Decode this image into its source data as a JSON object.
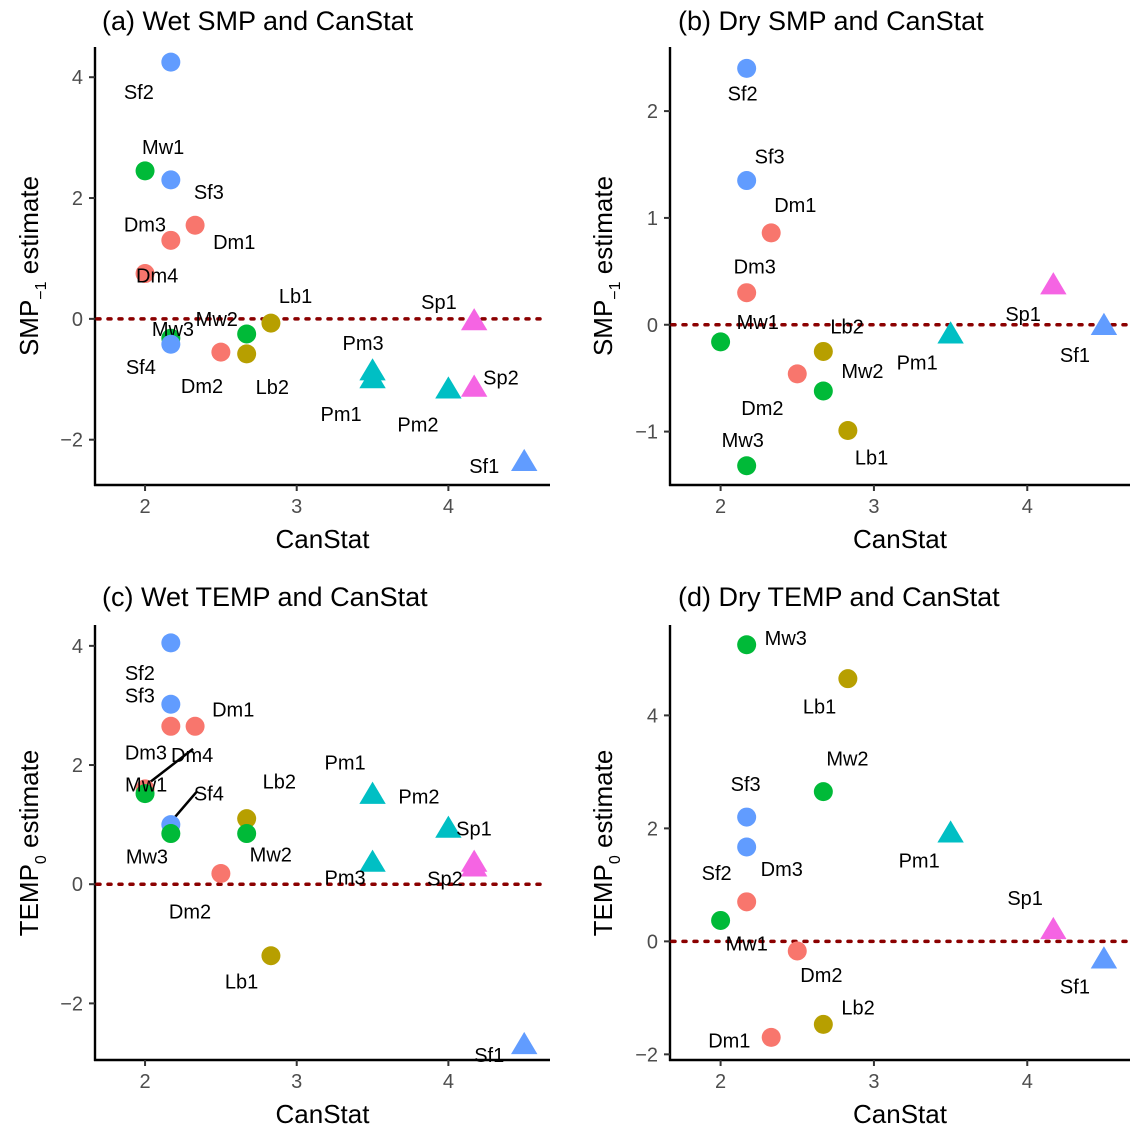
{
  "colors": {
    "Dm": "#f8766d",
    "Lb": "#b79f00",
    "Mw": "#00ba38",
    "Pm": "#00bfc4",
    "Sf": "#619cff",
    "Sp": "#f564e3",
    "ref_line": "#8b0000"
  },
  "chart_data": [
    {
      "type": "scatter",
      "title": "(a) Wet SMP and CanStat",
      "xlabel": "CanStat",
      "ylabel_main": "SMP",
      "ylabel_sub": "−1",
      "ylabel_rest": " estimate",
      "xlim": [
        1.67,
        4.67
      ],
      "ylim": [
        -2.75,
        4.5
      ],
      "xticks": [
        2,
        3,
        4
      ],
      "yticks": [
        -2,
        0,
        2,
        4
      ],
      "ytick_labels": [
        "−2",
        "0",
        "2",
        "4"
      ],
      "ref_y": 0,
      "points": [
        {
          "label": "Sf2",
          "group": "Sf",
          "shape": "circle",
          "x": 2.17,
          "y": 4.25
        },
        {
          "label": "Mw1",
          "group": "Mw",
          "shape": "circle",
          "x": 2.0,
          "y": 2.45
        },
        {
          "label": "Sf3",
          "group": "Sf",
          "shape": "circle",
          "x": 2.17,
          "y": 2.3
        },
        {
          "label": "Dm3",
          "group": "Dm",
          "shape": "circle",
          "x": 2.17,
          "y": 1.3
        },
        {
          "label": "Dm1",
          "group": "Dm",
          "shape": "circle",
          "x": 2.33,
          "y": 1.55
        },
        {
          "label": "Dm4",
          "group": "Dm",
          "shape": "circle",
          "x": 2.0,
          "y": 0.75
        },
        {
          "label": "Mw3",
          "group": "Mw",
          "shape": "circle",
          "x": 2.17,
          "y": -0.32
        },
        {
          "label": "Sf4",
          "group": "Sf",
          "shape": "circle",
          "x": 2.17,
          "y": -0.42
        },
        {
          "label": "Mw2",
          "group": "Mw",
          "shape": "circle",
          "x": 2.67,
          "y": -0.25
        },
        {
          "label": "Dm2",
          "group": "Dm",
          "shape": "circle",
          "x": 2.5,
          "y": -0.55
        },
        {
          "label": "Lb1",
          "group": "Lb",
          "shape": "circle",
          "x": 2.83,
          "y": -0.07
        },
        {
          "label": "Lb2",
          "group": "Lb",
          "shape": "circle",
          "x": 2.67,
          "y": -0.58
        },
        {
          "label": "Pm3",
          "group": "Pm",
          "shape": "triangle",
          "x": 3.5,
          "y": -0.85
        },
        {
          "label": "Pm1",
          "group": "Pm",
          "shape": "triangle",
          "x": 3.5,
          "y": -0.98
        },
        {
          "label": "Pm2",
          "group": "Pm",
          "shape": "triangle",
          "x": 4.0,
          "y": -1.15
        },
        {
          "label": "Sp1",
          "group": "Sp",
          "shape": "triangle",
          "x": 4.17,
          "y": -0.02
        },
        {
          "label": "Sp2",
          "group": "Sp",
          "shape": "triangle",
          "x": 4.17,
          "y": -1.12
        },
        {
          "label": "Sf1",
          "group": "Sf",
          "shape": "triangle",
          "x": 4.5,
          "y": -2.35
        }
      ]
    },
    {
      "type": "scatter",
      "title": "(b) Dry SMP and CanStat",
      "xlabel": "CanStat",
      "ylabel_main": "SMP",
      "ylabel_sub": "−1",
      "ylabel_rest": " estimate",
      "xlim": [
        1.67,
        4.67
      ],
      "ylim": [
        -1.5,
        2.6
      ],
      "xticks": [
        2,
        3,
        4
      ],
      "yticks": [
        -1,
        0,
        1,
        2
      ],
      "ytick_labels": [
        "−1",
        "0",
        "1",
        "2"
      ],
      "ref_y": 0,
      "points": [
        {
          "label": "Sf2",
          "group": "Sf",
          "shape": "circle",
          "x": 2.17,
          "y": 2.4
        },
        {
          "label": "Sf3",
          "group": "Sf",
          "shape": "circle",
          "x": 2.17,
          "y": 1.35
        },
        {
          "label": "Dm1",
          "group": "Dm",
          "shape": "circle",
          "x": 2.33,
          "y": 0.86
        },
        {
          "label": "Dm3",
          "group": "Dm",
          "shape": "circle",
          "x": 2.17,
          "y": 0.3
        },
        {
          "label": "Mw1",
          "group": "Mw",
          "shape": "circle",
          "x": 2.0,
          "y": -0.16
        },
        {
          "label": "Lb2",
          "group": "Lb",
          "shape": "circle",
          "x": 2.67,
          "y": -0.25
        },
        {
          "label": "Dm2",
          "group": "Dm",
          "shape": "circle",
          "x": 2.5,
          "y": -0.46
        },
        {
          "label": "Mw2",
          "group": "Mw",
          "shape": "circle",
          "x": 2.67,
          "y": -0.62
        },
        {
          "label": "Lb1",
          "group": "Lb",
          "shape": "circle",
          "x": 2.83,
          "y": -0.99
        },
        {
          "label": "Mw3",
          "group": "Mw",
          "shape": "circle",
          "x": 2.17,
          "y": -1.32
        },
        {
          "label": "Pm1",
          "group": "Pm",
          "shape": "triangle",
          "x": 3.5,
          "y": -0.08
        },
        {
          "label": "Sp1",
          "group": "Sp",
          "shape": "triangle",
          "x": 4.17,
          "y": 0.38
        },
        {
          "label": "Sf1",
          "group": "Sf",
          "shape": "triangle",
          "x": 4.5,
          "y": 0.0
        }
      ]
    },
    {
      "type": "scatter",
      "title": "(c) Wet TEMP and CanStat",
      "xlabel": "CanStat",
      "ylabel_main": "TEMP",
      "ylabel_sub": "0",
      "ylabel_rest": " estimate",
      "xlim": [
        1.67,
        4.67
      ],
      "ylim": [
        -2.95,
        4.35
      ],
      "xticks": [
        2,
        3,
        4
      ],
      "yticks": [
        -2,
        0,
        2,
        4
      ],
      "ytick_labels": [
        "−2",
        "0",
        "2",
        "4"
      ],
      "ref_y": 0,
      "points": [
        {
          "label": "Sf2",
          "group": "Sf",
          "shape": "circle",
          "x": 2.17,
          "y": 4.05
        },
        {
          "label": "Sf3",
          "group": "Sf",
          "shape": "circle",
          "x": 2.17,
          "y": 3.02
        },
        {
          "label": "Dm3",
          "group": "Dm",
          "shape": "circle",
          "x": 2.17,
          "y": 2.65
        },
        {
          "label": "Dm1",
          "group": "Dm",
          "shape": "circle",
          "x": 2.33,
          "y": 2.65
        },
        {
          "label": "Dm4",
          "group": "Dm",
          "shape": "circle",
          "x": 2.0,
          "y": 1.6
        },
        {
          "label": "Mw1",
          "group": "Mw",
          "shape": "circle",
          "x": 2.0,
          "y": 1.52
        },
        {
          "label": "Sf4",
          "group": "Sf",
          "shape": "circle",
          "x": 2.17,
          "y": 1.0
        },
        {
          "label": "Mw3",
          "group": "Mw",
          "shape": "circle",
          "x": 2.17,
          "y": 0.85
        },
        {
          "label": "Lb2",
          "group": "Lb",
          "shape": "circle",
          "x": 2.67,
          "y": 1.1
        },
        {
          "label": "Mw2",
          "group": "Mw",
          "shape": "circle",
          "x": 2.67,
          "y": 0.85
        },
        {
          "label": "Dm2",
          "group": "Dm",
          "shape": "circle",
          "x": 2.5,
          "y": 0.18
        },
        {
          "label": "Lb1",
          "group": "Lb",
          "shape": "circle",
          "x": 2.83,
          "y": -1.2
        },
        {
          "label": "Pm1",
          "group": "Pm",
          "shape": "triangle",
          "x": 3.5,
          "y": 1.52
        },
        {
          "label": "Pm3",
          "group": "Pm",
          "shape": "triangle",
          "x": 3.5,
          "y": 0.38
        },
        {
          "label": "Pm2",
          "group": "Pm",
          "shape": "triangle",
          "x": 4.0,
          "y": 0.95
        },
        {
          "label": "Sp1",
          "group": "Sp",
          "shape": "triangle",
          "x": 4.17,
          "y": 0.38
        },
        {
          "label": "Sp2",
          "group": "Sp",
          "shape": "triangle",
          "x": 4.17,
          "y": 0.3
        },
        {
          "label": "Sf1",
          "group": "Sf",
          "shape": "triangle",
          "x": 4.5,
          "y": -2.68
        }
      ]
    },
    {
      "type": "scatter",
      "title": "(d) Dry TEMP and CanStat",
      "xlabel": "CanStat",
      "ylabel_main": "TEMP",
      "ylabel_sub": "0",
      "ylabel_rest": " estimate",
      "xlim": [
        1.67,
        4.67
      ],
      "ylim": [
        -2.1,
        5.6
      ],
      "xticks": [
        2,
        3,
        4
      ],
      "yticks": [
        -2,
        0,
        2,
        4
      ],
      "ytick_labels": [
        "−2",
        "0",
        "2",
        "4"
      ],
      "ref_y": 0,
      "points": [
        {
          "label": "Mw3",
          "group": "Mw",
          "shape": "circle",
          "x": 2.17,
          "y": 5.25
        },
        {
          "label": "Lb1",
          "group": "Lb",
          "shape": "circle",
          "x": 2.83,
          "y": 4.65
        },
        {
          "label": "Mw2",
          "group": "Mw",
          "shape": "circle",
          "x": 2.67,
          "y": 2.65
        },
        {
          "label": "Sf3",
          "group": "Sf",
          "shape": "circle",
          "x": 2.17,
          "y": 2.2
        },
        {
          "label": "Sf2",
          "group": "Sf",
          "shape": "circle",
          "x": 2.17,
          "y": 1.67
        },
        {
          "label": "Dm3",
          "group": "Dm",
          "shape": "circle",
          "x": 2.17,
          "y": 0.7
        },
        {
          "label": "Mw1",
          "group": "Mw",
          "shape": "circle",
          "x": 2.0,
          "y": 0.37
        },
        {
          "label": "Dm2",
          "group": "Dm",
          "shape": "circle",
          "x": 2.5,
          "y": -0.17
        },
        {
          "label": "Lb2",
          "group": "Lb",
          "shape": "circle",
          "x": 2.67,
          "y": -1.47
        },
        {
          "label": "Dm1",
          "group": "Dm",
          "shape": "circle",
          "x": 2.33,
          "y": -1.7
        },
        {
          "label": "Pm1",
          "group": "Pm",
          "shape": "triangle",
          "x": 3.5,
          "y": 1.93
        },
        {
          "label": "Sp1",
          "group": "Sp",
          "shape": "triangle",
          "x": 4.17,
          "y": 0.22
        },
        {
          "label": "Sf1",
          "group": "Sf",
          "shape": "triangle",
          "x": 4.5,
          "y": -0.3
        }
      ]
    }
  ]
}
